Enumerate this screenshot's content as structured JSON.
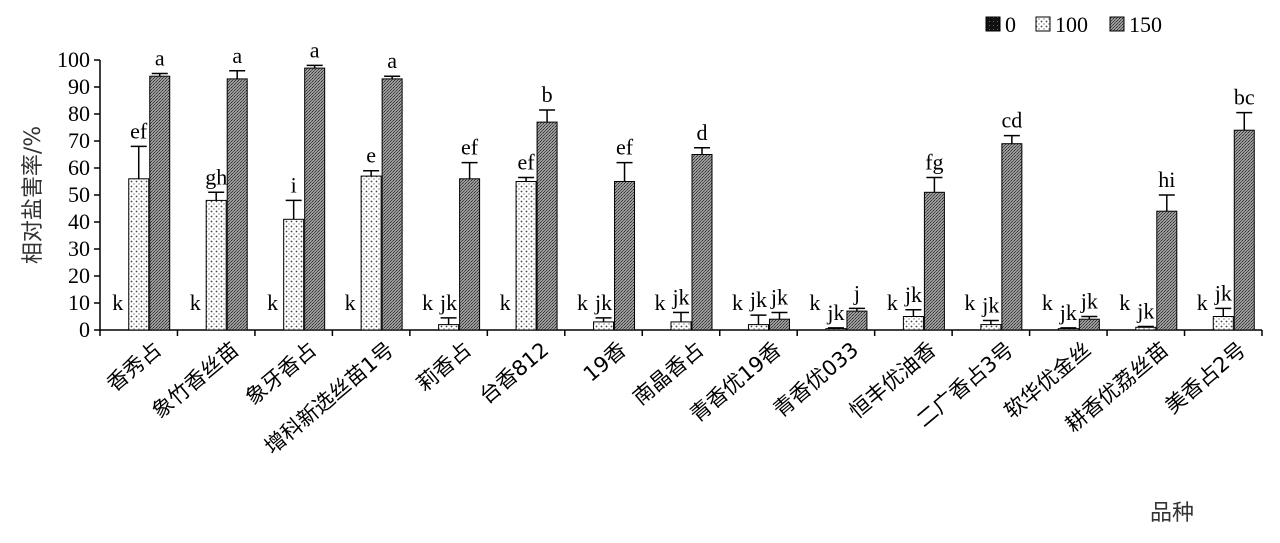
{
  "chart_data": {
    "type": "bar",
    "xlabel": "品种",
    "ylabel": "相对盐害率/%",
    "ylim": [
      0,
      100
    ],
    "yticks": [
      0,
      10,
      20,
      30,
      40,
      50,
      60,
      70,
      80,
      90,
      100
    ],
    "grid": false,
    "legend_position": "top-right",
    "categories": [
      "香秀占",
      "象竹香丝苗",
      "象牙香占",
      "增科新选丝苗1号",
      "莉香占",
      "台香812",
      "19香",
      "南晶香占",
      "青香优19香",
      "青香优033",
      "恒丰优油香",
      "二广香占3号",
      "软华优金丝",
      "耕香优荔丝苗",
      "美香占2号"
    ],
    "series": [
      {
        "name": "0",
        "values": [
          0,
          0,
          0,
          0,
          0,
          0,
          0,
          0,
          0,
          0,
          0,
          0,
          0,
          0,
          0
        ],
        "errors": [
          0,
          0,
          0,
          0,
          0,
          0,
          0,
          0,
          0,
          0,
          0,
          0,
          0,
          0,
          0
        ],
        "letters": [
          "k",
          "k",
          "k",
          "k",
          "k",
          "k",
          "k",
          "k",
          "k",
          "k",
          "k",
          "k",
          "k",
          "k",
          "k"
        ]
      },
      {
        "name": "100",
        "values": [
          56,
          48,
          41,
          57,
          2,
          55,
          3,
          3,
          2,
          0.5,
          5,
          2,
          0.5,
          1,
          5
        ],
        "errors": [
          12,
          3,
          7,
          2,
          2.5,
          1.5,
          1.5,
          3.5,
          3.5,
          0.3,
          2.5,
          1.5,
          0.3,
          0.3,
          3
        ],
        "letters": [
          "ef",
          "gh",
          "i",
          "e",
          "jk",
          "ef",
          "jk",
          "jk",
          "jk",
          "jk",
          "jk",
          "jk",
          "jk",
          "jk",
          "jk"
        ]
      },
      {
        "name": "150",
        "values": [
          94,
          93,
          97,
          93,
          56,
          77,
          55,
          65,
          4,
          7,
          51,
          69,
          4,
          44,
          74
        ],
        "errors": [
          1,
          3,
          1,
          1,
          6,
          4.5,
          7,
          2.5,
          2.5,
          1,
          5.5,
          3,
          1,
          6,
          6.5
        ],
        "letters": [
          "a",
          "a",
          "a",
          "a",
          "ef",
          "b",
          "ef",
          "d",
          "jk",
          "j",
          "fg",
          "cd",
          "jk",
          "hi",
          "bc"
        ]
      }
    ]
  },
  "colors": {
    "series_0_fill": "#1a1a1a",
    "series_100_fill": "#f2f2f2",
    "series_150_fill": "#8c8c8c",
    "axis": "#000000"
  }
}
